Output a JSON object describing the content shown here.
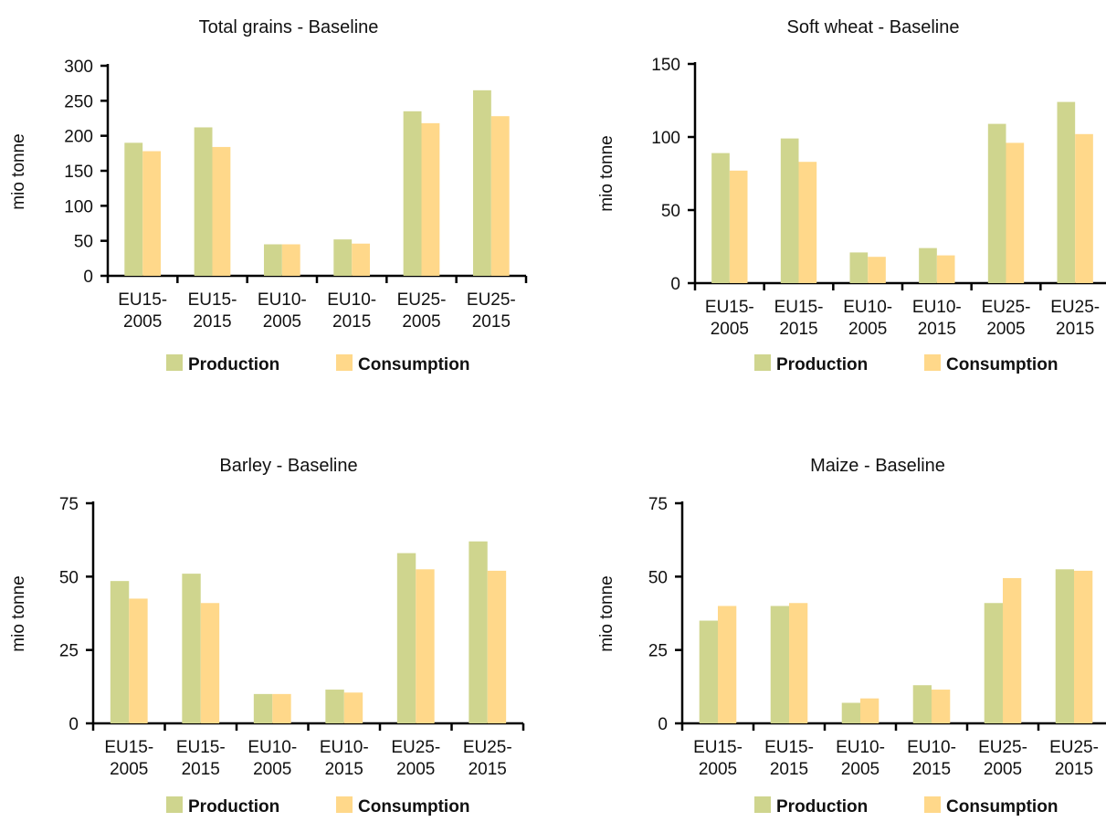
{
  "colors": {
    "production": "#cfd58e",
    "consumption": "#ffd88a"
  },
  "chart_data": [
    {
      "type": "bar",
      "title": "Total grains - Baseline",
      "ylabel": "mio tonne",
      "ylim": [
        0,
        300
      ],
      "yticks": [
        "0",
        "50",
        "100",
        "150",
        "200",
        "250",
        "300"
      ],
      "ytick_values": [
        0,
        50,
        100,
        150,
        200,
        250,
        300
      ],
      "categories": [
        [
          "EU15-",
          "2005"
        ],
        [
          "EU15-",
          "2015"
        ],
        [
          "EU10-",
          "2005"
        ],
        [
          "EU10-",
          "2015"
        ],
        [
          "EU25-",
          "2005"
        ],
        [
          "EU25-",
          "2015"
        ]
      ],
      "series": [
        {
          "name": "Production",
          "values": [
            190,
            212,
            45,
            52,
            235,
            265
          ]
        },
        {
          "name": "Consumption",
          "values": [
            178,
            184,
            45,
            46,
            218,
            228
          ]
        }
      ],
      "legend": "bottom"
    },
    {
      "type": "bar",
      "title": "Soft wheat - Baseline",
      "ylabel": "mio tonne",
      "ylim": [
        0,
        150
      ],
      "yticks": [
        "0",
        "50",
        "100",
        "150"
      ],
      "ytick_values": [
        0,
        50,
        100,
        150
      ],
      "categories": [
        [
          "EU15-",
          "2005"
        ],
        [
          "EU15-",
          "2015"
        ],
        [
          "EU10-",
          "2005"
        ],
        [
          "EU10-",
          "2015"
        ],
        [
          "EU25-",
          "2005"
        ],
        [
          "EU25-",
          "2015"
        ]
      ],
      "series": [
        {
          "name": "Production",
          "values": [
            89,
            99,
            21,
            24,
            109,
            124
          ]
        },
        {
          "name": "Consumption",
          "values": [
            77,
            83,
            18,
            19,
            96,
            102
          ]
        }
      ],
      "legend": "bottom"
    },
    {
      "type": "bar",
      "title": "Barley - Baseline",
      "ylabel": "mio tonne",
      "ylim": [
        0,
        75
      ],
      "yticks": [
        "0",
        "25",
        "50",
        "75"
      ],
      "ytick_values": [
        0,
        25,
        50,
        75
      ],
      "categories": [
        [
          "EU15-",
          "2005"
        ],
        [
          "EU15-",
          "2015"
        ],
        [
          "EU10-",
          "2005"
        ],
        [
          "EU10-",
          "2015"
        ],
        [
          "EU25-",
          "2005"
        ],
        [
          "EU25-",
          "2015"
        ]
      ],
      "series": [
        {
          "name": "Production",
          "values": [
            48.5,
            51,
            10,
            11.5,
            58,
            62
          ]
        },
        {
          "name": "Consumption",
          "values": [
            42.5,
            41,
            10,
            10.5,
            52.5,
            52
          ]
        }
      ],
      "legend": "bottom"
    },
    {
      "type": "bar",
      "title": "Maize - Baseline",
      "ylabel": "mio tonne",
      "ylim": [
        0,
        75
      ],
      "yticks": [
        "0",
        "25",
        "50",
        "75"
      ],
      "ytick_values": [
        0,
        25,
        50,
        75
      ],
      "categories": [
        [
          "EU15-",
          "2005"
        ],
        [
          "EU15-",
          "2015"
        ],
        [
          "EU10-",
          "2005"
        ],
        [
          "EU10-",
          "2015"
        ],
        [
          "EU25-",
          "2005"
        ],
        [
          "EU25-",
          "2015"
        ]
      ],
      "series": [
        {
          "name": "Production",
          "values": [
            35,
            40,
            7,
            13,
            41,
            52.5
          ]
        },
        {
          "name": "Consumption",
          "values": [
            40,
            41,
            8.5,
            11.5,
            49.5,
            52
          ]
        }
      ],
      "legend": "bottom"
    }
  ]
}
